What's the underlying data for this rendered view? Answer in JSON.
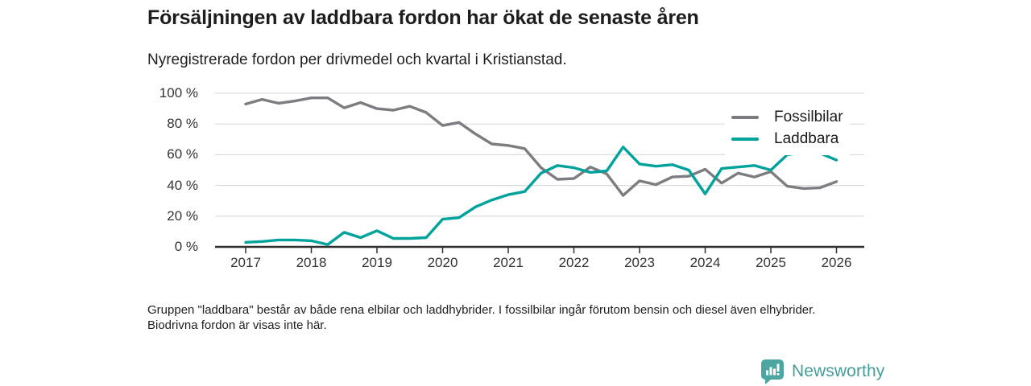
{
  "header": {
    "title": "Försäljningen av laddbara fordon har ökat de senaste åren",
    "subtitle": "Nyregistrerade fordon per drivmedel och kvartal i Kristianstad."
  },
  "chart_data": {
    "type": "line",
    "x_start": "2017 Q1",
    "x_interval": "quarter",
    "x_tick_labels": [
      "2017",
      "2018",
      "2019",
      "2020",
      "2021",
      "2022",
      "2023",
      "2024",
      "2025",
      "2026"
    ],
    "y_tick_labels": [
      "0 %",
      "20 %",
      "40 %",
      "60 %",
      "80 %",
      "100 %"
    ],
    "y_tick_values": [
      0,
      20,
      40,
      60,
      80,
      100
    ],
    "ylim": [
      0,
      100
    ],
    "grid": true,
    "legend_position": "top-right",
    "series": [
      {
        "name": "Fossilbilar",
        "color": "#7c7c81",
        "values": [
          93,
          96,
          93.5,
          95,
          97,
          97,
          90.5,
          94,
          90,
          89,
          91.5,
          87.5,
          79,
          81,
          73.5,
          67,
          66,
          64,
          51.5,
          44,
          44.5,
          52,
          47.5,
          33.5,
          43,
          40.5,
          45.5,
          46,
          50.5,
          41.5,
          48,
          45.5,
          49,
          39.5,
          38,
          38.5,
          42.5
        ]
      },
      {
        "name": "Laddbara",
        "color": "#00a39b",
        "values": [
          3,
          3.5,
          4.5,
          4.5,
          4,
          1.5,
          9.5,
          6,
          10.5,
          5.5,
          5.5,
          6,
          18,
          19,
          26,
          30.5,
          34,
          36,
          48,
          53,
          51.5,
          48.5,
          49.5,
          65,
          54,
          52.5,
          53.5,
          50,
          34.5,
          51,
          52,
          53,
          50,
          60,
          61.5,
          61,
          56.5
        ]
      }
    ],
    "colors": {
      "grid": "#dcdcdc",
      "axis": "#2f2f2f",
      "tick_text": "#333333"
    }
  },
  "footer": {
    "note": "Gruppen \"laddbara\" består av både rena elbilar och laddhybrider. I fossilbilar ingår förutom bensin och diesel även elhybrider. Biodrivna fordon är visas inte här."
  },
  "brand": {
    "name": "Newsworthy",
    "icon": "bar-chart-pin-icon",
    "icon_color": "#4ba5a1",
    "text_color": "#459d9a"
  }
}
